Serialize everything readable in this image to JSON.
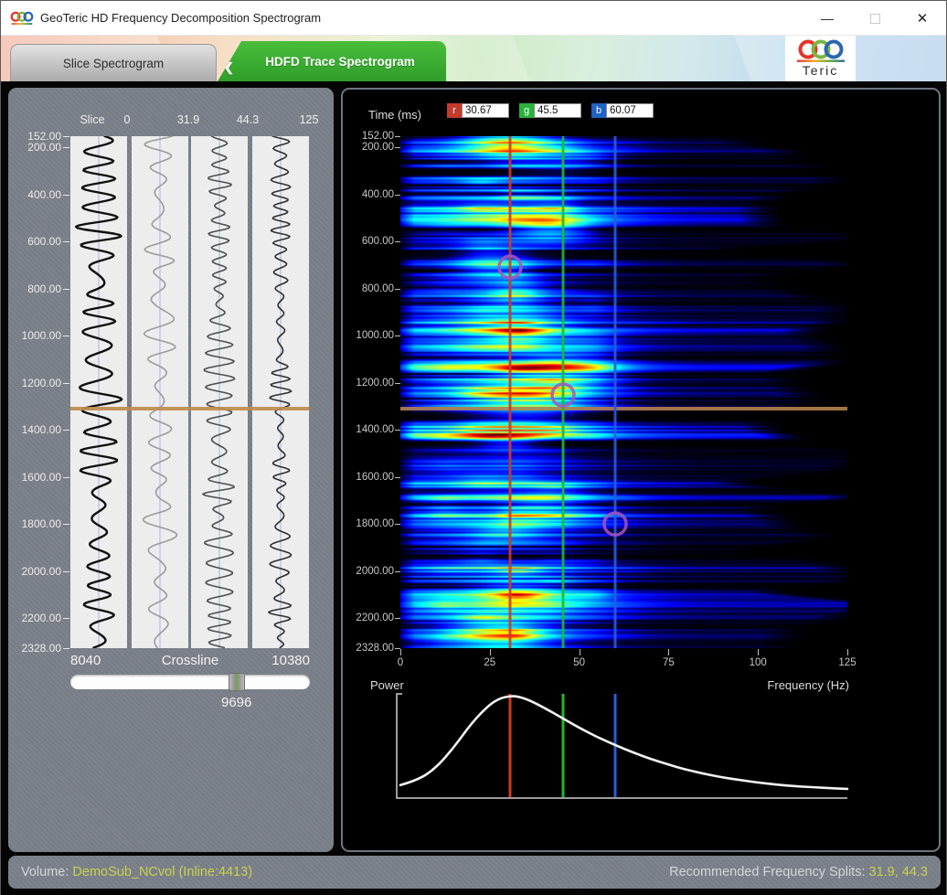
{
  "window": {
    "title": "GeoTeric HD Frequency Decomposition Spectrogram",
    "controls": {
      "minimize": "—",
      "maximize": "",
      "close": "✕"
    }
  },
  "icons": {
    "back_chevron": "❮"
  },
  "logo": {
    "teric": "Teric"
  },
  "tabs": [
    {
      "label": "Slice Spectrogram",
      "active": false
    },
    {
      "label": "HDFD Trace Spectrogram",
      "active": true
    }
  ],
  "left_panel": {
    "slice_label": "Slice",
    "column_boundaries": [
      "0",
      "31.9",
      "44.3",
      "125"
    ],
    "crossline": {
      "label": "Crossline",
      "min": "8040",
      "max": "10380",
      "value": "9696",
      "min_num": 8040,
      "max_num": 10380,
      "value_num": 9696
    }
  },
  "right_panel": {
    "time_axis_label": "Time (ms)",
    "freq_axis_label": "Frequency (Hz)",
    "power_label": "Power",
    "freq_ticks": [
      "0",
      "25",
      "50",
      "75",
      "100",
      "125"
    ],
    "rgb": [
      {
        "label": "r",
        "value": "30.67",
        "color": "#c23b2d"
      },
      {
        "label": "g",
        "value": "45.5",
        "color": "#28b43c"
      },
      {
        "label": "b",
        "value": "60.07",
        "color": "#1f62c4"
      }
    ]
  },
  "status_bar": {
    "volume_label": "Volume: ",
    "volume_value": "DemoSub_NCvol (Inline:4413)",
    "recommend_label": "Recommended Frequency Splits: ",
    "recommend_value": "31.9, 44.3"
  },
  "chart_data": [
    {
      "type": "heatmap",
      "title": "HDFD Trace Spectrogram",
      "xlabel": "Frequency (Hz)",
      "ylabel": "Time (ms)",
      "x_range": [
        0,
        125
      ],
      "y_range": [
        152,
        2328
      ],
      "x_ticks": [
        0,
        25,
        50,
        75,
        100,
        125
      ],
      "y_tick_labels": [
        "152.00",
        "200.00",
        "400.00",
        "600.00",
        "800.00",
        "1000.00",
        "1200.00",
        "1400.00",
        "1600.00",
        "1800.00",
        "2000.00",
        "2200.00",
        "2328.00"
      ],
      "colormap": "jet-black-floor",
      "marker_lines": [
        {
          "channel": "r",
          "freq_hz": 30.67,
          "color": "#cf3a22"
        },
        {
          "channel": "g",
          "freq_hz": 45.5,
          "color": "#1fba2f"
        },
        {
          "channel": "b",
          "freq_hz": 60.07,
          "color": "#2b5cd8"
        }
      ],
      "picked_points": [
        {
          "freq_hz": 30.67,
          "time_ms": 708
        },
        {
          "freq_hz": 45.5,
          "time_ms": 1252
        },
        {
          "freq_hz": 60.07,
          "time_ms": 1800
        }
      ],
      "picked_point_color": "#a855b8",
      "crosshair_time_ms": 1310,
      "crosshair_color": "#b5824c",
      "hot_regions": [
        {
          "time_ms": 185,
          "freq_hz": 30,
          "rt_ms": 45,
          "rf_hz": 8,
          "strength": 0.55
        },
        {
          "time_ms": 250,
          "freq_hz": 46,
          "rt_ms": 40,
          "rf_hz": 8,
          "strength": 0.22
        },
        {
          "time_ms": 545,
          "freq_hz": 42,
          "rt_ms": 35,
          "rf_hz": 7,
          "strength": 0.38
        },
        {
          "time_ms": 700,
          "freq_hz": 26,
          "rt_ms": 50,
          "rf_hz": 7,
          "strength": 0.35
        },
        {
          "time_ms": 830,
          "freq_hz": 31,
          "rt_ms": 40,
          "rf_hz": 7,
          "strength": 0.22
        },
        {
          "time_ms": 960,
          "freq_hz": 33,
          "rt_ms": 45,
          "rf_hz": 8,
          "strength": 0.27
        },
        {
          "time_ms": 1150,
          "freq_hz": 45,
          "rt_ms": 60,
          "rf_hz": 10,
          "strength": 0.33
        },
        {
          "time_ms": 1265,
          "freq_hz": 35,
          "rt_ms": 65,
          "rf_hz": 11,
          "strength": 0.5
        },
        {
          "time_ms": 1450,
          "freq_hz": 30,
          "rt_ms": 25,
          "rf_hz": 6,
          "strength": 0.27
        },
        {
          "time_ms": 1700,
          "freq_hz": 40,
          "rt_ms": 35,
          "rf_hz": 8,
          "strength": 0.24
        },
        {
          "time_ms": 1840,
          "freq_hz": 30,
          "rt_ms": 30,
          "rf_hz": 7,
          "strength": 0.27
        },
        {
          "time_ms": 2090,
          "freq_hz": 32,
          "rt_ms": 40,
          "rf_hz": 8,
          "strength": 0.3
        },
        {
          "time_ms": 2265,
          "freq_hz": 27,
          "rt_ms": 45,
          "rf_hz": 9,
          "strength": 0.55
        }
      ],
      "dark_rows": [
        {
          "time_ms": 300,
          "width_ms": 14
        },
        {
          "time_ms": 1340,
          "width_ms": 20
        },
        {
          "time_ms": 1462,
          "width_ms": 12
        },
        {
          "time_ms": 1935,
          "width_ms": 10
        }
      ]
    },
    {
      "type": "line",
      "title": "Average power spectrum",
      "xlabel": "Frequency (Hz)",
      "ylabel": "Power",
      "x_range": [
        0,
        125
      ],
      "marker_freqs_hz": [
        30.67,
        45.5,
        60.07
      ],
      "series": [
        {
          "name": "power",
          "points": [
            [
              0,
              0.1
            ],
            [
              5,
              0.15
            ],
            [
              10,
              0.27
            ],
            [
              15,
              0.47
            ],
            [
              20,
              0.71
            ],
            [
              25,
              0.89
            ],
            [
              28,
              0.95
            ],
            [
              30.67,
              0.97
            ],
            [
              33,
              0.965
            ],
            [
              36,
              0.93
            ],
            [
              40,
              0.86
            ],
            [
              45.5,
              0.75
            ],
            [
              50,
              0.66
            ],
            [
              55,
              0.57
            ],
            [
              60.07,
              0.49
            ],
            [
              65,
              0.42
            ],
            [
              70,
              0.355
            ],
            [
              75,
              0.3
            ],
            [
              80,
              0.25
            ],
            [
              85,
              0.21
            ],
            [
              90,
              0.175
            ],
            [
              95,
              0.15
            ],
            [
              100,
              0.125
            ],
            [
              105,
              0.105
            ],
            [
              110,
              0.09
            ],
            [
              115,
              0.08
            ],
            [
              120,
              0.07
            ],
            [
              125,
              0.063
            ]
          ]
        }
      ]
    },
    {
      "type": "seismic-traces",
      "title": "Frequency split traces",
      "column_boundaries_hz": [
        0,
        31.9,
        44.3,
        125
      ],
      "y_range": [
        152,
        2328
      ],
      "crosshair_time_ms": 1310
    }
  ]
}
